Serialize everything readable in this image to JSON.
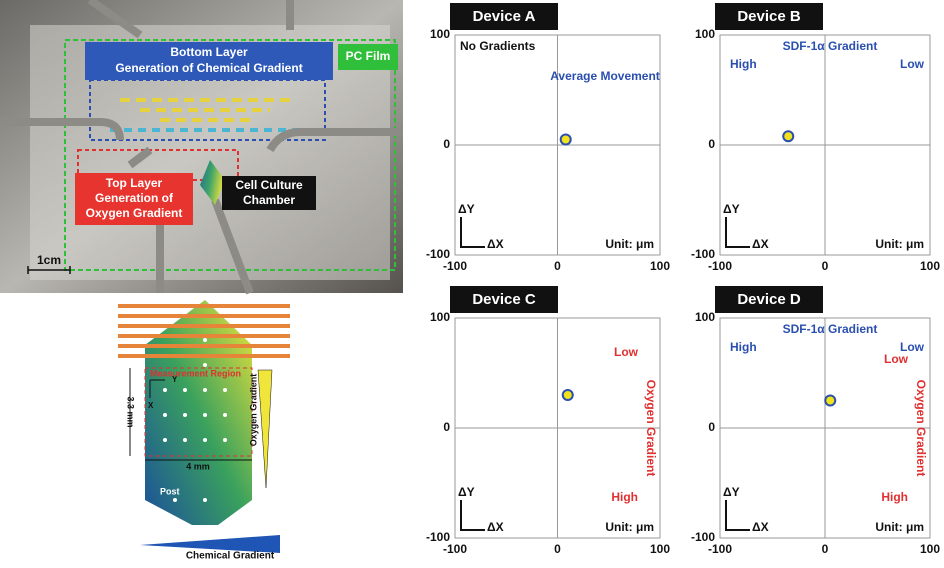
{
  "photo": {
    "pc_film": "PC Film",
    "bottom_layer": [
      "Bottom Layer",
      "Generation of Chemical Gradient"
    ],
    "top_layer": [
      "Top Layer",
      "Generation of",
      "Oxygen Gradient"
    ],
    "chamber": [
      "Cell Culture",
      "Chamber"
    ],
    "scale": "1cm"
  },
  "diagram": {
    "region": "Measurement Region",
    "height": "3.3 mm",
    "width": "4 mm",
    "oxygen": "Oxygen Gradient",
    "post": "Post",
    "chemical": "Chemical Gradient",
    "y_axis": "Y",
    "x_axis": "X"
  },
  "chart_data": [
    {
      "type": "scatter",
      "title": "Device A",
      "annotations": [
        "No Gradients",
        "Average Movement",
        "ΔY",
        "ΔX",
        "Unit: μm"
      ],
      "x": [
        8
      ],
      "values": [
        5
      ],
      "color": "#f2e21b",
      "xlim": [
        -100,
        100
      ],
      "ylim": [
        -100,
        100
      ],
      "xticks": [
        -100,
        0,
        100
      ],
      "yticks": [
        -100,
        0,
        100
      ],
      "grid": true
    },
    {
      "type": "scatter",
      "title": "Device B",
      "annotations": [
        "SDF-1α Gradient",
        "High",
        "Low",
        "ΔY",
        "ΔX",
        "Unit: μm"
      ],
      "x": [
        -35
      ],
      "values": [
        8
      ],
      "color": "#f2e21b",
      "xlim": [
        -100,
        100
      ],
      "ylim": [
        -100,
        100
      ],
      "xticks": [
        -100,
        0,
        100
      ],
      "yticks": [
        -100,
        0,
        100
      ],
      "grid": true
    },
    {
      "type": "scatter",
      "title": "Device C",
      "annotations": [
        "Low",
        "Oxygen Gradient",
        "High",
        "ΔY",
        "ΔX",
        "Unit: μm"
      ],
      "x": [
        10
      ],
      "values": [
        30
      ],
      "color": "#f2e21b",
      "xlim": [
        -100,
        100
      ],
      "ylim": [
        -100,
        100
      ],
      "xticks": [
        -100,
        0,
        100
      ],
      "yticks": [
        -100,
        0,
        100
      ],
      "grid": true
    },
    {
      "type": "scatter",
      "title": "Device D",
      "annotations": [
        "SDF-1α Gradient",
        "High",
        "Low",
        "Low",
        "Oxygen Gradient",
        "High",
        "ΔY",
        "ΔX",
        "Unit: μm"
      ],
      "x": [
        5
      ],
      "values": [
        25
      ],
      "color": "#f2e21b",
      "xlim": [
        -100,
        100
      ],
      "ylim": [
        -100,
        100
      ],
      "xticks": [
        -100,
        0,
        100
      ],
      "yticks": [
        -100,
        0,
        100
      ],
      "grid": true
    }
  ]
}
